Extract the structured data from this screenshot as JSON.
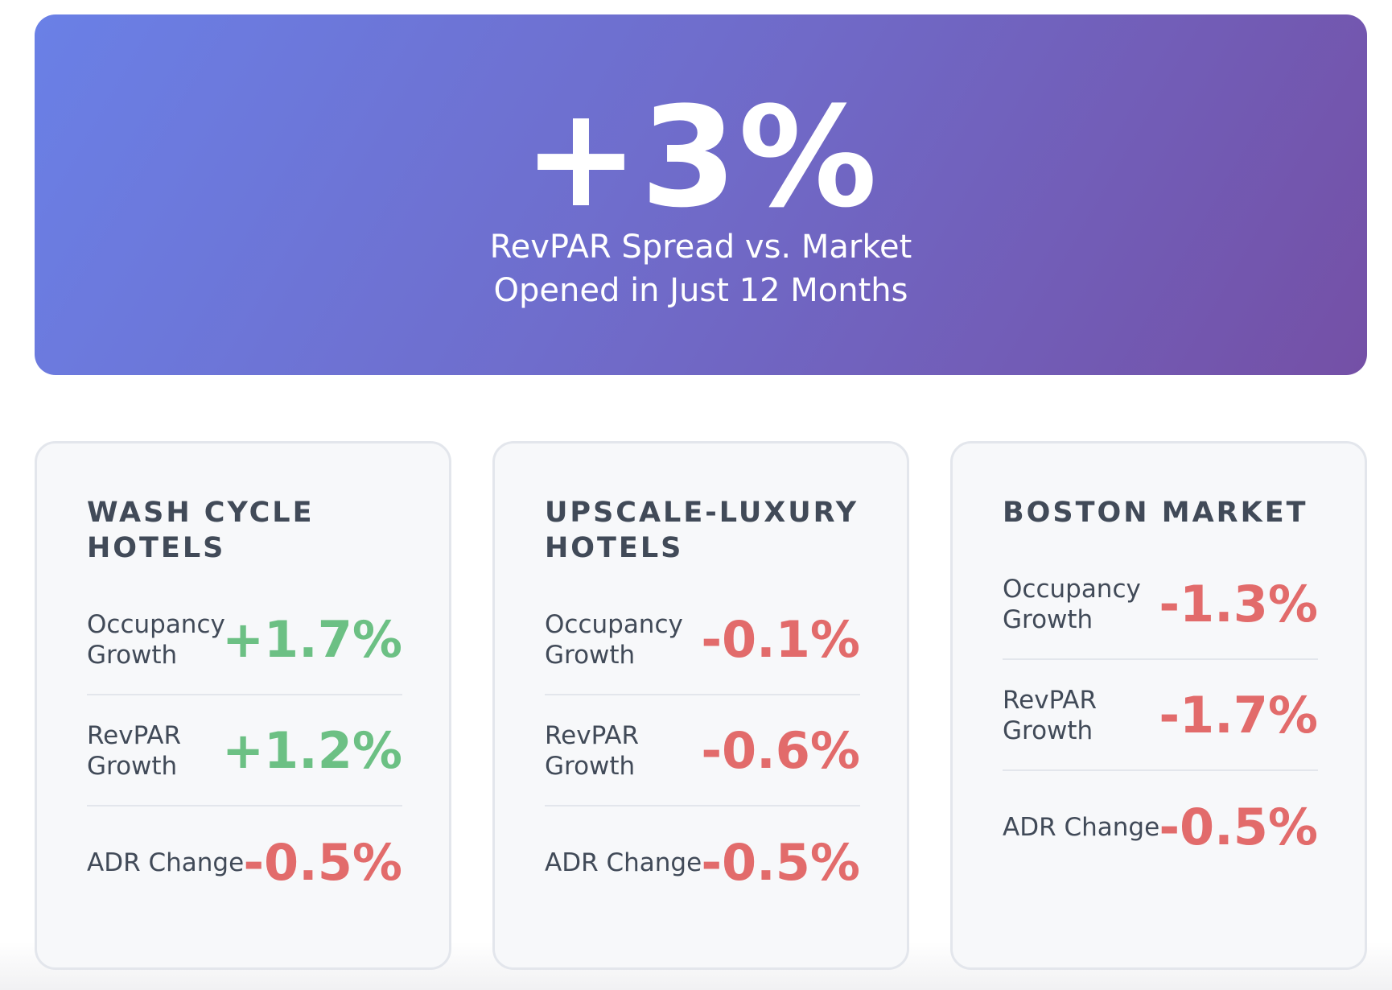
{
  "hero": {
    "value": "+3%",
    "subtitle_line1": "RevPAR Spread vs. Market",
    "subtitle_line2": "Opened in Just 12 Months"
  },
  "cards": [
    {
      "title": "Wash Cycle Hotels",
      "metrics": [
        {
          "label": "Occupancy Growth",
          "value": "+1.7%"
        },
        {
          "label": "RevPAR Growth",
          "value": "+1.2%"
        },
        {
          "label": "ADR Change",
          "value": "-0.5%"
        }
      ]
    },
    {
      "title": "Upscale-Luxury Hotels",
      "metrics": [
        {
          "label": "Occupancy Growth",
          "value": "-0.1%"
        },
        {
          "label": "RevPAR Growth",
          "value": "-0.6%"
        },
        {
          "label": "ADR Change",
          "value": "-0.5%"
        }
      ]
    },
    {
      "title": "Boston Market",
      "metrics": [
        {
          "label": "Occupancy Growth",
          "value": "-1.3%"
        },
        {
          "label": "RevPAR Growth",
          "value": "-1.7%"
        },
        {
          "label": "ADR Change",
          "value": "-0.5%"
        }
      ]
    }
  ],
  "colors": {
    "positive": "#6cc084",
    "negative": "#e26b6b",
    "hero_start": "#6a80e6",
    "hero_end": "#7450a6"
  }
}
